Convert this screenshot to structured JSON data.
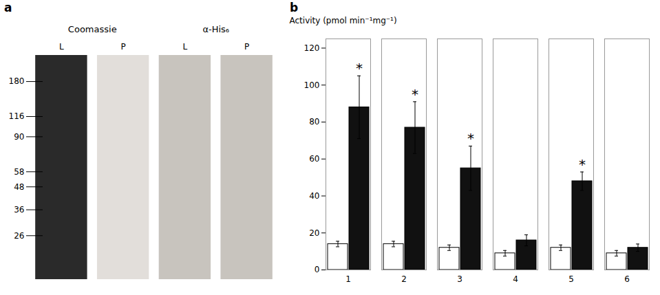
{
  "chart_data": [
    {
      "type": "gel",
      "title": "a",
      "annotations": [
        "Coomassie",
        "α-His₆"
      ],
      "categories": [
        "L",
        "P",
        "L",
        "P"
      ],
      "log": "y",
      "ylim": [
        15,
        250
      ],
      "yticks": [
        180,
        116,
        90,
        58,
        48,
        36,
        26
      ],
      "grid": false,
      "legend": false
    },
    {
      "type": "bar",
      "title": "b",
      "ylabel": "Activity (pmol min⁻¹mg⁻¹)",
      "categories": [
        1,
        2,
        3,
        4,
        5,
        6
      ],
      "series": [
        {
          "color": "#ffffff",
          "values": [
            14,
            14,
            12,
            9,
            12,
            9
          ],
          "errors": [
            1.5,
            1.5,
            1.5,
            1.5,
            1.5,
            1.5
          ]
        },
        {
          "color": "#111111",
          "values": [
            88,
            77,
            55,
            16,
            48,
            12
          ],
          "errors": [
            17,
            14,
            12,
            3,
            5,
            2
          ],
          "annotations": [
            "*",
            "*",
            "*",
            null,
            "*",
            null
          ]
        }
      ],
      "ylim": [
        0,
        125
      ],
      "yticks": [
        0,
        20,
        40,
        60,
        80,
        100,
        120
      ],
      "grid": false,
      "legend": false
    }
  ]
}
